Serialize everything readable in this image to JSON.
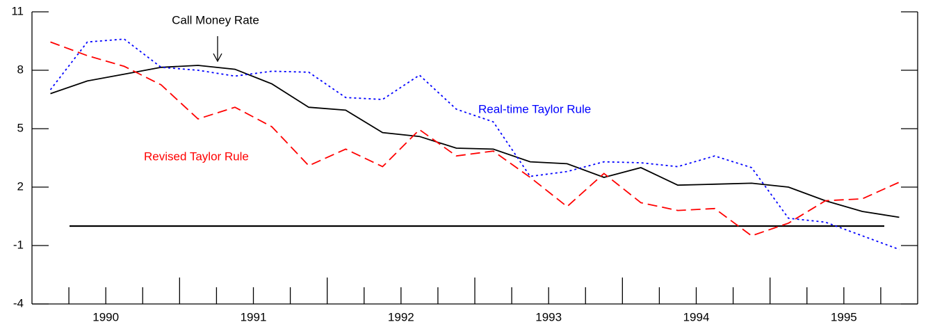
{
  "chart_data": {
    "type": "line",
    "x": [
      1990.125,
      1990.375,
      1990.625,
      1990.875,
      1991.125,
      1991.375,
      1991.625,
      1991.875,
      1992.125,
      1992.375,
      1992.625,
      1992.875,
      1993.125,
      1993.375,
      1993.625,
      1993.875,
      1994.125,
      1994.375,
      1994.625,
      1994.875,
      1995.125,
      1995.375,
      1995.625,
      1995.875
    ],
    "series": [
      {
        "name": "Call Money Rate",
        "color": "#000000",
        "dash": "solid",
        "values": [
          6.8,
          7.45,
          7.8,
          8.15,
          8.25,
          8.05,
          7.3,
          6.1,
          5.95,
          4.8,
          4.6,
          4.0,
          3.95,
          3.3,
          3.2,
          2.5,
          3.0,
          2.1,
          2.15,
          2.2,
          2.0,
          1.3,
          0.75,
          0.45
        ]
      },
      {
        "name": "Revised Taylor Rule",
        "color": "#ff0000",
        "dash": "dashed",
        "values": [
          9.45,
          8.75,
          8.2,
          7.25,
          5.5,
          6.1,
          5.1,
          3.1,
          3.95,
          3.05,
          4.95,
          3.6,
          3.85,
          2.5,
          1.0,
          2.7,
          1.2,
          0.8,
          0.9,
          -0.5,
          0.15,
          1.3,
          1.4,
          2.25
        ]
      },
      {
        "name": "Real-time Taylor Rule",
        "color": "#0000ff",
        "dash": "dotted",
        "values": [
          7.0,
          9.45,
          9.6,
          8.15,
          8.0,
          7.7,
          7.95,
          7.9,
          6.6,
          6.5,
          7.75,
          6.0,
          5.35,
          2.55,
          2.8,
          3.3,
          3.25,
          3.05,
          3.6,
          3.0,
          0.4,
          0.2,
          -0.5,
          -1.2
        ]
      }
    ],
    "xlim": [
      1990,
      1996
    ],
    "xticks": [
      {
        "value": 1990.5,
        "label": "1990"
      },
      {
        "value": 1991.5,
        "label": "1991"
      },
      {
        "value": 1992.5,
        "label": "1992"
      },
      {
        "value": 1993.5,
        "label": "1993"
      },
      {
        "value": 1994.5,
        "label": "1994"
      },
      {
        "value": 1995.5,
        "label": "1995"
      }
    ],
    "major_xticks": [
      1991,
      1992,
      1993,
      1994,
      1995
    ],
    "minor_xticks": [
      1990.25,
      1990.5,
      1990.75,
      1991.25,
      1991.5,
      1991.75,
      1992.25,
      1992.5,
      1992.75,
      1993.25,
      1993.5,
      1993.75,
      1994.25,
      1994.5,
      1994.75,
      1995.25,
      1995.5,
      1995.75
    ],
    "ylim": [
      -4,
      11
    ],
    "yticks": [
      -4,
      -1,
      2,
      5,
      8,
      11
    ],
    "annotations": [
      {
        "text": "Call Money Rate",
        "series": 0
      },
      {
        "text": "Real-time Taylor Rule",
        "series": 2
      },
      {
        "text": "Revised Taylor Rule",
        "series": 1
      }
    ]
  }
}
